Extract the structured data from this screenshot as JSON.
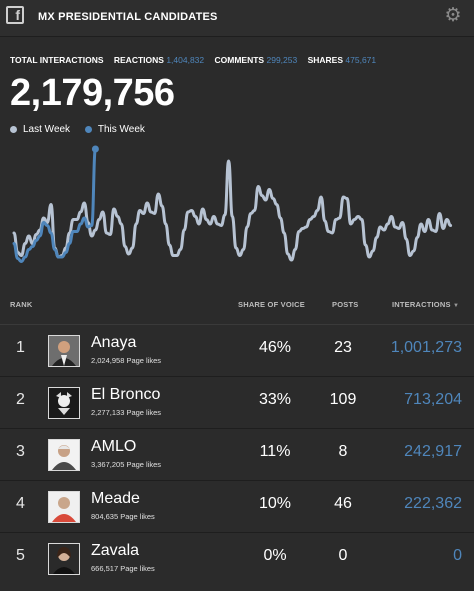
{
  "header": {
    "title": "MX PRESIDENTIAL CANDIDATES",
    "facebook_icon": "facebook-icon",
    "settings_icon": "gear-icon"
  },
  "stats": {
    "total_label": "TOTAL INTERACTIONS",
    "reactions_label": "REACTIONS",
    "reactions_value": "1,404,832",
    "comments_label": "COMMENTS",
    "comments_value": "299,253",
    "shares_label": "SHARES",
    "shares_value": "475,671",
    "total_value": "2,179,756"
  },
  "legend": [
    {
      "label": "Last Week",
      "color": "#b7c3d3"
    },
    {
      "label": "This Week",
      "color": "#4f86bb"
    }
  ],
  "chart_data": {
    "type": "line",
    "series": [
      {
        "name": "Last Week",
        "color": "#b7c3d3",
        "values": [
          22,
          9,
          7,
          15,
          20,
          15,
          21,
          24,
          32,
          29,
          41,
          12,
          6,
          7,
          12,
          22,
          31,
          31,
          36,
          42,
          29,
          20,
          24,
          31,
          36,
          22,
          21,
          38,
          33,
          28,
          13,
          8,
          12,
          28,
          37,
          35,
          42,
          36,
          35,
          48,
          40,
          28,
          14,
          7,
          7,
          11,
          24,
          36,
          37,
          33,
          28,
          38,
          31,
          28,
          33,
          28,
          27,
          34,
          70,
          33,
          12,
          7,
          11,
          26,
          35,
          37,
          53,
          47,
          44,
          51,
          45,
          41,
          32,
          22,
          8,
          4,
          11,
          23,
          25,
          26,
          31,
          33,
          37,
          46,
          30,
          23,
          22,
          31,
          32,
          46,
          45,
          28,
          31,
          33,
          31,
          14,
          6,
          10,
          19,
          26,
          24,
          28,
          33,
          26,
          25,
          29,
          18,
          7,
          10,
          19,
          28,
          23,
          31,
          24,
          23,
          35,
          25,
          31,
          27
        ]
      },
      {
        "name": "This Week",
        "color": "#4f86bb",
        "values": [
          15,
          5,
          3,
          6,
          11,
          13,
          17,
          20,
          29,
          27,
          22,
          11,
          6,
          6,
          9,
          15,
          23,
          23,
          28,
          32,
          26,
          27,
          78
        ]
      }
    ]
  },
  "table": {
    "headers": {
      "rank": "RANK",
      "share": "SHARE OF VOICE",
      "posts": "POSTS",
      "interactions": "INTERACTIONS",
      "sort_icon": "caret-down-icon"
    },
    "rows": [
      {
        "rank": "1",
        "name": "Anaya",
        "likes": "2,024,958 Page likes",
        "share": "46%",
        "posts": "23",
        "interactions": "1,001,273"
      },
      {
        "rank": "2",
        "name": "El Bronco",
        "likes": "2,277,133 Page likes",
        "share": "33%",
        "posts": "109",
        "interactions": "713,204"
      },
      {
        "rank": "3",
        "name": "AMLO",
        "likes": "3,367,205 Page likes",
        "share": "11%",
        "posts": "8",
        "interactions": "242,917"
      },
      {
        "rank": "4",
        "name": "Meade",
        "likes": "804,635 Page likes",
        "share": "10%",
        "posts": "46",
        "interactions": "222,362"
      },
      {
        "rank": "5",
        "name": "Zavala",
        "likes": "666,517 Page likes",
        "share": "0%",
        "posts": "0",
        "interactions": "0"
      }
    ]
  }
}
